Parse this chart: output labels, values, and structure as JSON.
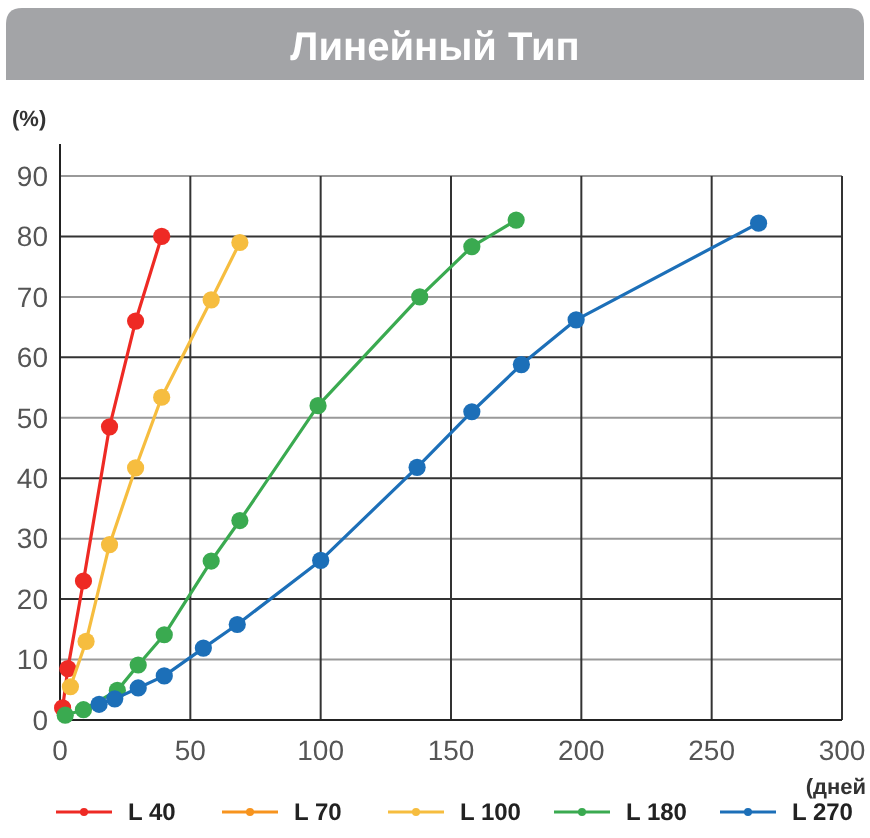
{
  "chart_data": {
    "type": "line",
    "title": "Линейный Тип",
    "ylabel": "(%)",
    "xlabel": "(дней",
    "xlim": [
      0,
      300
    ],
    "xticks": [
      0,
      50,
      100,
      150,
      200,
      250,
      300
    ],
    "ylim": [
      0,
      90
    ],
    "yticks": [
      0,
      10,
      20,
      30,
      40,
      50,
      60,
      70,
      80,
      90
    ],
    "grid": true,
    "legend": "bottom",
    "marker": "circle",
    "line_style": "solid",
    "series": [
      {
        "name": "L 40",
        "color": "#ee2a24",
        "x": [
          1,
          3,
          9,
          19,
          29,
          39
        ],
        "values": [
          2,
          8.5,
          23,
          48.5,
          66,
          80
        ]
      },
      {
        "name": "L 70",
        "color": "#f7941e"
      },
      {
        "name": "L 100",
        "color": "#f6bd3f",
        "x": [
          4,
          10,
          19,
          29,
          39,
          58,
          69
        ],
        "values": [
          5.5,
          13,
          29,
          41.7,
          53.4,
          69.5,
          79
        ]
      },
      {
        "name": "L 180",
        "color": "#3aaa50",
        "x": [
          2,
          9,
          22,
          30,
          40,
          58,
          69,
          99,
          138,
          158,
          175
        ],
        "values": [
          0.8,
          1.7,
          4.9,
          9.1,
          14.1,
          26.3,
          33,
          52,
          70,
          78.3,
          82.7
        ]
      },
      {
        "name": "L 270",
        "color": "#1c6fb8",
        "x": [
          15,
          21,
          30,
          40,
          55,
          68,
          100,
          137,
          158,
          177,
          198,
          268
        ],
        "values": [
          2.6,
          3.5,
          5.3,
          7.3,
          11.9,
          15.8,
          26.4,
          41.8,
          51,
          58.8,
          66.2,
          82.2
        ]
      }
    ]
  }
}
